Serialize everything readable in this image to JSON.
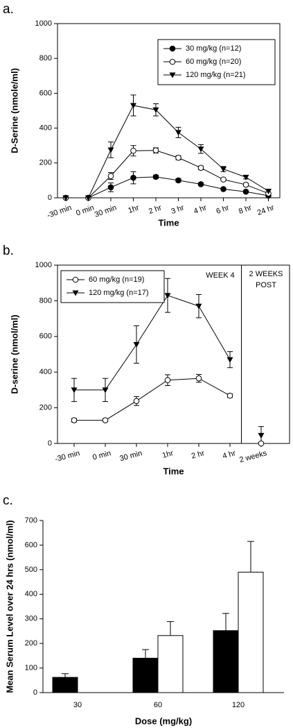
{
  "chart_data": [
    {
      "type": "line",
      "panel_label": "a.",
      "ylabel": "D-Serine (nmole/ml)",
      "xlabel": "Time",
      "categories": [
        "-30 min",
        "0 min",
        "30 min",
        "1hr",
        "2 hr",
        "3 hr",
        "4 hr",
        "6 hr",
        "8 hr",
        "24 hr"
      ],
      "ylim": [
        0,
        1000
      ],
      "yticks": [
        0,
        200,
        400,
        600,
        800,
        1000
      ],
      "legend": "upper right",
      "frame": true,
      "series": [
        {
          "name": "30 mg/kg (n=12)",
          "marker": "circle",
          "color": "#000000",
          "values": [
            0,
            0,
            60,
            115,
            120,
            100,
            78,
            50,
            35,
            12
          ],
          "errors": [
            3,
            3,
            25,
            35,
            10,
            10,
            8,
            6,
            5,
            4
          ]
        },
        {
          "name": "60 mg/kg (n=20)",
          "marker": "circle-open",
          "color": "#000000",
          "values": [
            0,
            0,
            125,
            270,
            272,
            230,
            172,
            105,
            75,
            25
          ],
          "errors": [
            3,
            3,
            20,
            30,
            15,
            12,
            10,
            8,
            8,
            5
          ]
        },
        {
          "name": "120 mg/kg (n=21)",
          "marker": "triangle-down",
          "color": "#000000",
          "values": [
            0,
            0,
            275,
            530,
            505,
            375,
            280,
            165,
            118,
            38
          ],
          "errors": [
            3,
            3,
            45,
            60,
            35,
            30,
            25,
            15,
            10,
            8
          ]
        }
      ]
    },
    {
      "type": "line",
      "panel_label": "b.",
      "ylabel": "D-serine (nmol/ml)",
      "xlabel": "Time",
      "categories": [
        "-30 min",
        "0 min",
        "30 min",
        "1hr",
        "2 hr",
        "4 hr",
        "2 weeks"
      ],
      "break_before": "2 weeks",
      "annotations": [
        [
          "WEEK 4"
        ],
        [
          "2 WEEKS",
          "POST"
        ]
      ],
      "ylim": [
        0,
        1000
      ],
      "yticks": [
        0,
        200,
        400,
        600,
        800,
        1000
      ],
      "legend": "upper left",
      "frame": true,
      "series": [
        {
          "name": "60 mg/kg (n=19)",
          "marker": "circle-open",
          "color": "#000000",
          "values": [
            130,
            130,
            238,
            355,
            365,
            268,
            0
          ],
          "errors": [
            10,
            8,
            25,
            30,
            22,
            10,
            5
          ]
        },
        {
          "name": "120 mg/kg (n=17)",
          "marker": "triangle-down",
          "color": "#000000",
          "values": [
            300,
            300,
            555,
            830,
            770,
            470,
            45
          ],
          "errors": [
            65,
            65,
            105,
            95,
            65,
            45,
            50
          ]
        }
      ]
    },
    {
      "type": "bar",
      "panel_label": "c.",
      "ylabel": "Mean Serum Level over 24 hrs (nmol/ml)",
      "xlabel": "Dose (mg/kg)",
      "categories": [
        "30",
        "60",
        "120"
      ],
      "ylim": [
        0,
        700
      ],
      "yticks": [
        0,
        100,
        200,
        300,
        400,
        500,
        600,
        700
      ],
      "frame": false,
      "series": [
        {
          "color": "#000000",
          "values": [
            62,
            140,
            252
          ],
          "errors": [
            15,
            35,
            70
          ]
        },
        {
          "color": "#ffffff",
          "values": [
            null,
            232,
            490
          ],
          "errors": [
            null,
            57,
            125
          ]
        }
      ]
    }
  ]
}
